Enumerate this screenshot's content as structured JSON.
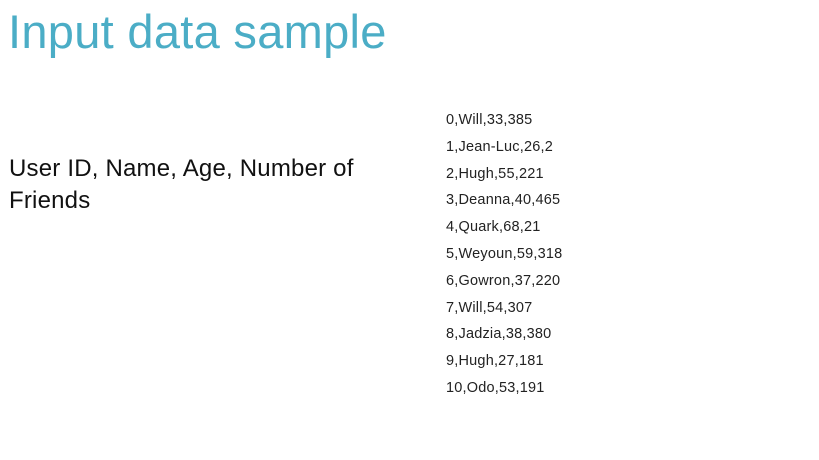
{
  "colors": {
    "title": "#4badc6",
    "text": "#111111"
  },
  "slide": {
    "title": "Input data sample",
    "description": "User ID, Name, Age, Number of Friends",
    "rows": [
      "0,Will,33,385",
      "1,Jean-Luc,26,2",
      "2,Hugh,55,221",
      "3,Deanna,40,465",
      "4,Quark,68,21",
      "5,Weyoun,59,318",
      "6,Gowron,37,220",
      "7,Will,54,307",
      "8,Jadzia,38,380",
      "9,Hugh,27,181",
      "10,Odo,53,191"
    ]
  }
}
